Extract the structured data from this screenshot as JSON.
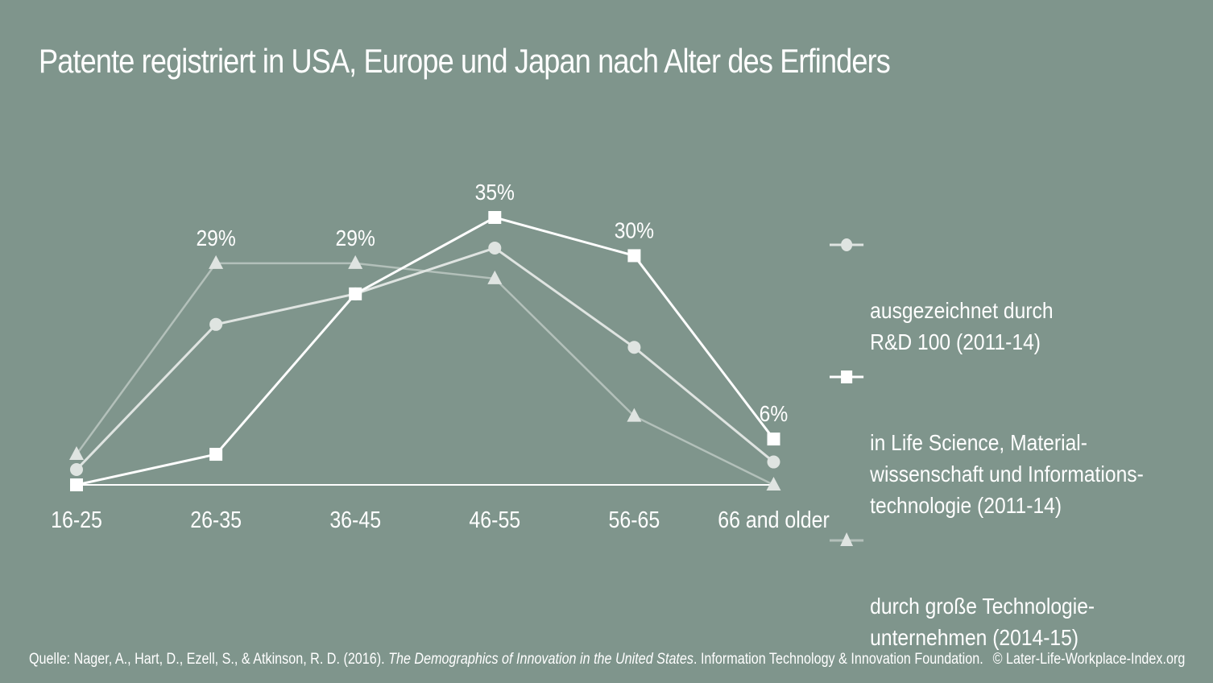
{
  "title": "Patente registriert in USA, Europe und Japan nach Alter des Erfinders",
  "colors": {
    "background": "#7f958c",
    "square_series": "#ffffff",
    "circle_series": "#dfe4e1",
    "triangle_series": "#b3c0ba",
    "triangle_marker": "#dfe4e1"
  },
  "chart_data": {
    "type": "line",
    "title": "Patente registriert in USA, Europe und Japan nach Alter des Erfinders",
    "xlabel": "",
    "ylabel": "",
    "ylim": [
      0,
      35
    ],
    "grid": false,
    "legend_position": "right",
    "categories": [
      "16-25",
      "26-35",
      "36-45",
      "46-55",
      "56-65",
      "66 and older"
    ],
    "series": [
      {
        "name": "ausgezeichnet durch R&D 100 (2011-14)",
        "marker": "circle",
        "values": [
          2,
          21,
          25,
          31,
          18,
          3
        ],
        "labels": [
          null,
          null,
          null,
          null,
          null,
          null
        ]
      },
      {
        "name": "in Life Science, Materialwissenschaft und Informationstechnologie (2011-14)",
        "marker": "square",
        "values": [
          0,
          4,
          25,
          35,
          30,
          6
        ],
        "labels": [
          null,
          null,
          null,
          "35%",
          "30%",
          "6%"
        ]
      },
      {
        "name": "durch große Technologieunternehmen (2014-15)",
        "marker": "triangle",
        "values": [
          4,
          29,
          29,
          27,
          9,
          0
        ],
        "labels": [
          null,
          "29%",
          "29%",
          null,
          null,
          null
        ]
      }
    ]
  },
  "legend": [
    {
      "text": "ausgezeichnet durch\nR&D 100 (2011-14)"
    },
    {
      "text": "in Life Science, Material-\nwissenschaft und Informations-\ntechnologie (2011-14)"
    },
    {
      "text": "durch große Technologie-\nunternehmen (2014-15)"
    }
  ],
  "footer": {
    "prefix": "Quelle: Nager, A., Hart, D., Ezell, S., & Atkinson, R. D. (2016). ",
    "italic": "The Demographics of Innovation in the United States",
    "suffix": ". Information Technology & Innovation Foundation.",
    "copyright": "© Later-Life-Workplace-Index.org"
  }
}
